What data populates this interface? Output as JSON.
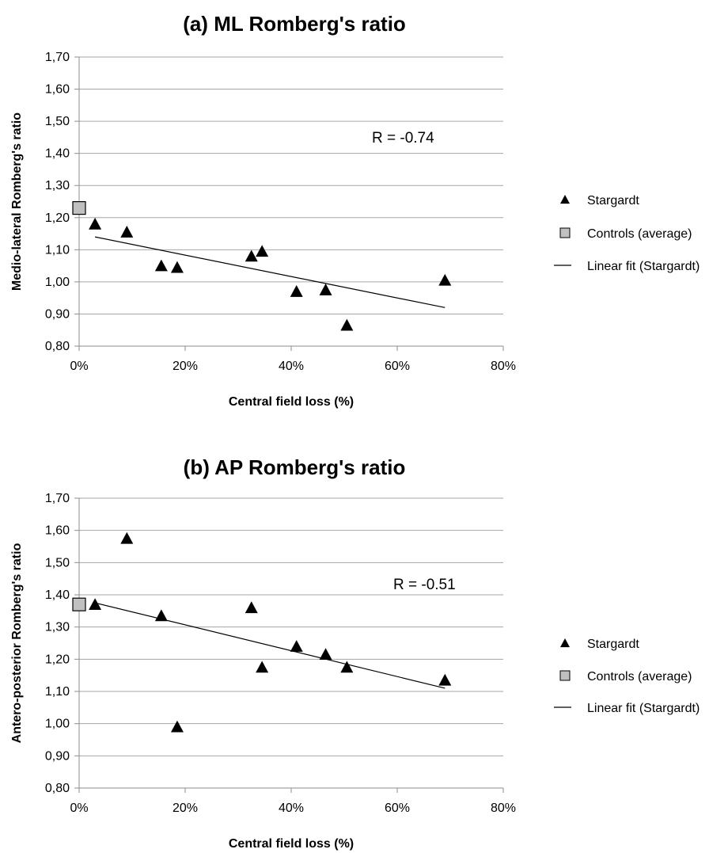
{
  "chart_data": [
    {
      "type": "scatter",
      "title": "(a) ML Romberg's ratio",
      "xlabel": "Central field loss (%)",
      "ylabel": "Medio-lateral Romberg's ratio",
      "xlim": [
        0,
        0.8
      ],
      "ylim": [
        0.8,
        1.7
      ],
      "x_ticks": [
        0,
        0.2,
        0.4,
        0.6,
        0.8
      ],
      "x_tick_labels": [
        "0%",
        "20%",
        "40%",
        "60%",
        "80%"
      ],
      "y_ticks": [
        0.8,
        0.9,
        1.0,
        1.1,
        1.2,
        1.3,
        1.4,
        1.5,
        1.6,
        1.7
      ],
      "y_tick_labels": [
        "0,80",
        "0,90",
        "1,00",
        "1,10",
        "1,20",
        "1,30",
        "1,40",
        "1,50",
        "1,60",
        "1,70"
      ],
      "grid": true,
      "legend_position": "right",
      "annotation": "R = -0.74",
      "series": [
        {
          "name": "Stargardt",
          "marker": "triangle",
          "color": "#000000",
          "points": [
            [
              0.03,
              1.18
            ],
            [
              0.09,
              1.155
            ],
            [
              0.155,
              1.05
            ],
            [
              0.185,
              1.045
            ],
            [
              0.325,
              1.08
            ],
            [
              0.345,
              1.095
            ],
            [
              0.41,
              0.97
            ],
            [
              0.465,
              0.975
            ],
            [
              0.505,
              0.865
            ],
            [
              0.69,
              1.005
            ]
          ]
        },
        {
          "name": "Controls (average)",
          "marker": "square",
          "color": "#c0c0c0",
          "points": [
            [
              0.0,
              1.23
            ]
          ]
        },
        {
          "name": "Linear fit (Stargardt)",
          "marker": "line",
          "color": "#000000",
          "points": [
            [
              0.03,
              1.14
            ],
            [
              0.69,
              0.92
            ]
          ]
        }
      ]
    },
    {
      "type": "scatter",
      "title": "(b) AP Romberg's ratio",
      "xlabel": "Central field loss (%)",
      "ylabel": "Antero-posterior Romberg's ratio",
      "xlim": [
        0,
        0.8
      ],
      "ylim": [
        0.8,
        1.7
      ],
      "x_ticks": [
        0,
        0.2,
        0.4,
        0.6,
        0.8
      ],
      "x_tick_labels": [
        "0%",
        "20%",
        "40%",
        "60%",
        "80%"
      ],
      "y_ticks": [
        0.8,
        0.9,
        1.0,
        1.1,
        1.2,
        1.3,
        1.4,
        1.5,
        1.6,
        1.7
      ],
      "y_tick_labels": [
        "0,80",
        "0,90",
        "1,00",
        "1,10",
        "1,20",
        "1,30",
        "1,40",
        "1,50",
        "1,60",
        "1,70"
      ],
      "grid": true,
      "legend_position": "right",
      "annotation": "R = -0.51",
      "series": [
        {
          "name": "Stargardt",
          "marker": "triangle",
          "color": "#000000",
          "points": [
            [
              0.03,
              1.37
            ],
            [
              0.09,
              1.575
            ],
            [
              0.155,
              1.335
            ],
            [
              0.185,
              0.99
            ],
            [
              0.325,
              1.36
            ],
            [
              0.345,
              1.175
            ],
            [
              0.41,
              1.24
            ],
            [
              0.465,
              1.215
            ],
            [
              0.505,
              1.175
            ],
            [
              0.69,
              1.135
            ]
          ]
        },
        {
          "name": "Controls (average)",
          "marker": "square",
          "color": "#c0c0c0",
          "points": [
            [
              0.0,
              1.37
            ]
          ]
        },
        {
          "name": "Linear fit (Stargardt)",
          "marker": "line",
          "color": "#000000",
          "points": [
            [
              0.03,
              1.375
            ],
            [
              0.69,
              1.11
            ]
          ]
        }
      ]
    }
  ]
}
